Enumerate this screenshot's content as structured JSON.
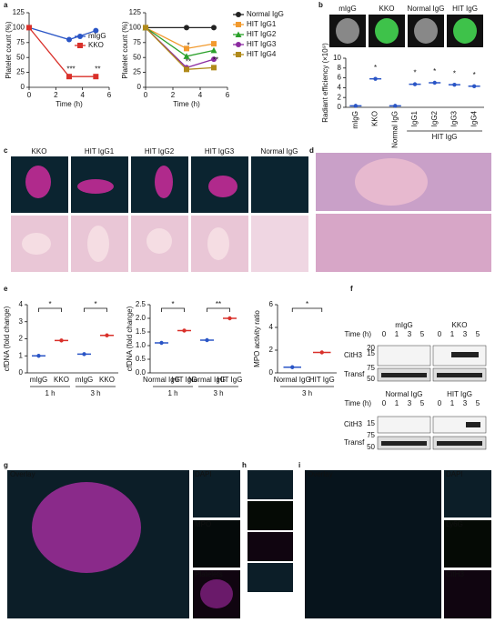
{
  "chart_data": [
    {
      "type": "line",
      "ylabel": "Platelet count (%)",
      "xlabel": "Time (h)",
      "x": [
        0,
        3,
        5
      ],
      "xlim": [
        0,
        6
      ],
      "xticks": [
        0,
        2,
        4,
        6
      ],
      "ylim": [
        0,
        125
      ],
      "yticks": [
        0,
        25,
        50,
        75,
        100,
        125
      ],
      "legend": "upper right",
      "series": [
        {
          "name": "mIgG",
          "color": "#2a55c6",
          "marker": "circle",
          "values": [
            100,
            80,
            95
          ]
        },
        {
          "name": "KKO",
          "color": "#d9302a",
          "marker": "square",
          "values": [
            100,
            18,
            18
          ]
        }
      ],
      "annotations": [
        "***",
        "**"
      ]
    },
    {
      "type": "line",
      "ylabel": "Platelet count (%)",
      "xlabel": "Time (h)",
      "x": [
        0,
        3,
        5
      ],
      "xlim": [
        0,
        6
      ],
      "xticks": [
        0,
        2,
        4,
        6
      ],
      "ylim": [
        0,
        125
      ],
      "yticks": [
        0,
        25,
        50,
        75,
        100,
        125
      ],
      "legend": "outside right",
      "series": [
        {
          "name": "Normal IgG",
          "color": "#222222",
          "marker": "circle",
          "values": [
            100,
            100,
            100
          ]
        },
        {
          "name": "HIT IgG1",
          "color": "#f29a2e",
          "marker": "square",
          "values": [
            100,
            65,
            73
          ]
        },
        {
          "name": "HIT IgG2",
          "color": "#2aa02a",
          "marker": "triangle",
          "values": [
            100,
            52,
            62
          ]
        },
        {
          "name": "HIT IgG3",
          "color": "#8b2aa0",
          "marker": "circle",
          "values": [
            100,
            33,
            47
          ]
        },
        {
          "name": "HIT IgG4",
          "color": "#b08a1a",
          "marker": "square",
          "values": [
            100,
            30,
            33
          ]
        }
      ],
      "annotations": [
        "**",
        "**",
        "*"
      ]
    },
    {
      "type": "dot",
      "ylabel": "Radiant efficiency (×10⁹)",
      "categories": [
        "mIgG",
        "KKO",
        "Normal IgG",
        "IgG1",
        "IgG2",
        "IgG3",
        "IgG4"
      ],
      "values": [
        0.3,
        5.8,
        0.3,
        4.7,
        5,
        4.6,
        4.3
      ],
      "color": "#2a55c6",
      "ylim": [
        0,
        10
      ],
      "yticks": [
        0,
        2,
        4,
        6,
        8,
        10
      ],
      "rotate_labels": true,
      "group_label": "HIT IgG",
      "annotations": [
        "*",
        "*",
        "*",
        "*",
        "*"
      ]
    },
    {
      "type": "dot",
      "ylabel": "cfDNA (fold change)",
      "categories": [
        "mIgG",
        "KKO",
        "mIgG",
        "KKO"
      ],
      "colors": [
        "#2a55c6",
        "#d9302a",
        "#2a55c6",
        "#d9302a"
      ],
      "values": [
        1.0,
        1.9,
        1.1,
        2.2
      ],
      "ylim": [
        0,
        4
      ],
      "yticks": [
        0,
        1,
        2,
        3,
        4
      ],
      "groups": [
        "1 h",
        "3 h"
      ],
      "annotations": [
        "*",
        "*"
      ]
    },
    {
      "type": "dot",
      "ylabel": "cfDNA (fold change)",
      "categories": [
        "Normal IgG",
        "HIT IgG",
        "Normal IgG",
        "HIT IgG"
      ],
      "colors": [
        "#2a55c6",
        "#d9302a",
        "#2a55c6",
        "#d9302a"
      ],
      "values": [
        1.1,
        1.55,
        1.2,
        2.0
      ],
      "ylim": [
        0,
        2.5
      ],
      "yticks": [
        {
          "value": 0,
          "label": "0.0"
        },
        0.5,
        {
          "value": 1,
          "label": "1.0"
        },
        1.5,
        {
          "value": 2,
          "label": "2.0"
        },
        2.5
      ],
      "groups": [
        "1 h",
        "3 h"
      ],
      "annotations": [
        "*",
        "**"
      ]
    },
    {
      "type": "dot",
      "ylabel": "MPO activity ratio",
      "categories": [
        "Normal IgG",
        "HIT IgG"
      ],
      "colors": [
        "#2a55c6",
        "#d9302a"
      ],
      "values": [
        0.5,
        1.8
      ],
      "ylim": [
        0,
        6
      ],
      "yticks": [
        0,
        2,
        4,
        6
      ],
      "groups": [
        "3 h"
      ],
      "annotations": [
        "*"
      ]
    }
  ],
  "panels": {
    "labels": [
      "a",
      "b",
      "c",
      "d",
      "e",
      "f",
      "g",
      "h",
      "i"
    ],
    "b_images": [
      "mIgG",
      "KKO",
      "Normal IgG",
      "HIT IgG"
    ],
    "c_columns": [
      "KKO",
      "HIT IgG1",
      "HIT IgG2",
      "HIT IgG3",
      "Normal IgG"
    ],
    "f": {
      "time_label": "Time (h)",
      "times": [
        "0",
        "1",
        "3",
        "5"
      ],
      "groups": [
        "mIgG",
        "KKO",
        "Normal IgG",
        "HIT IgG"
      ],
      "rows": [
        "CitH3",
        "Transf"
      ],
      "mw_top": [
        "20",
        "15",
        "75",
        "50"
      ],
      "mw_bottom": [
        "15",
        "75",
        "50"
      ]
    },
    "g": [
      "Overlay",
      "DAPI",
      "MPO",
      "Platelets"
    ],
    "i": [
      "Overlay",
      "DAPI",
      "Ly6G",
      "CitH3"
    ]
  }
}
